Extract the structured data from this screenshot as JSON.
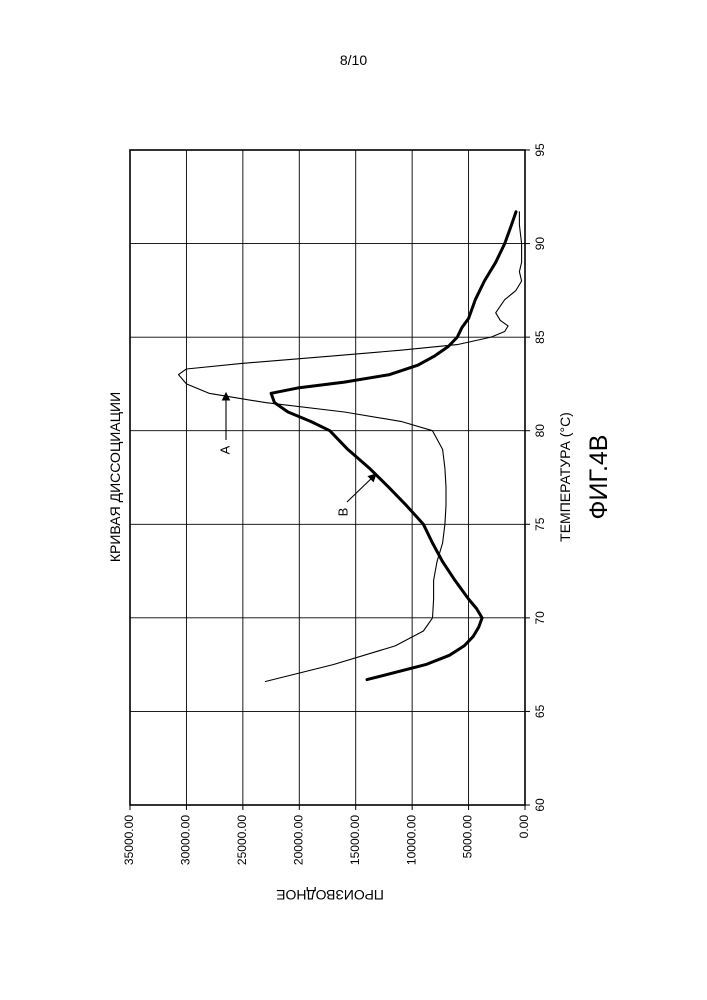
{
  "page": {
    "page_number": "8/10"
  },
  "figure": {
    "figure_label": "ФИГ.4В"
  },
  "chart_data": {
    "type": "line",
    "title": "КРИВАЯ ДИССОЦИАЦИИ",
    "xlabel": "ТЕМПЕРАТУРА (°C)",
    "ylabel": "ПРОИЗВОДНОЕ",
    "xlim": [
      60,
      95
    ],
    "ylim": [
      0,
      35000
    ],
    "x_ticks": [
      "60",
      "65",
      "70",
      "75",
      "80",
      "85",
      "90",
      "95"
    ],
    "y_ticks": [
      "0.00",
      "5000.00",
      "10000.00",
      "15000.00",
      "20000.00",
      "25000.00",
      "30000.00",
      "35000.00"
    ],
    "grid": true,
    "rotated": "90° counter-clockwise",
    "annotations": [
      {
        "label": "A",
        "series": "A"
      },
      {
        "label": "B",
        "series": "B"
      }
    ],
    "series": [
      {
        "name": "A",
        "line": "thin",
        "x": [
          66.6,
          67.5,
          68.5,
          69.3,
          70.0,
          71.0,
          72.0,
          73.0,
          74.0,
          75.0,
          76.0,
          77.0,
          78.0,
          79.0,
          80.0,
          80.5,
          81.0,
          81.5,
          82.0,
          82.5,
          83.0,
          83.3,
          83.6,
          84.0,
          84.3,
          84.6,
          85.0,
          85.3,
          85.6,
          85.9,
          86.3,
          87.0,
          87.5,
          88.0,
          88.5,
          89.0,
          90.0,
          91.0,
          91.7
        ],
        "y": [
          23000,
          17000,
          11500,
          9000,
          8200,
          8100,
          8100,
          7800,
          7300,
          7100,
          7000,
          7000,
          7100,
          7300,
          8200,
          11000,
          16000,
          23000,
          28000,
          30000,
          30700,
          30000,
          25000,
          17000,
          11000,
          6000,
          3000,
          1800,
          1500,
          2200,
          2600,
          1800,
          800,
          300,
          500,
          300,
          300,
          500,
          500
        ]
      },
      {
        "name": "B",
        "line": "thick",
        "x": [
          66.7,
          67.5,
          68.0,
          68.5,
          69.0,
          69.5,
          70.0,
          70.5,
          71.0,
          72.0,
          73.0,
          74.0,
          75.0,
          76.0,
          77.0,
          78.0,
          79.0,
          80.0,
          80.5,
          81.0,
          81.5,
          82.0,
          82.3,
          82.6,
          83.0,
          83.5,
          84.0,
          84.5,
          85.0,
          85.5,
          86.0,
          87.0,
          88.0,
          89.0,
          90.0,
          91.0,
          91.7
        ],
        "y": [
          14000,
          8800,
          6700,
          5400,
          4600,
          4100,
          3800,
          4300,
          5000,
          6200,
          7300,
          8200,
          9000,
          10500,
          12100,
          13800,
          15700,
          17300,
          19000,
          21000,
          22200,
          22500,
          20000,
          16000,
          12000,
          9500,
          8000,
          6800,
          6000,
          5600,
          5000,
          4400,
          3600,
          2600,
          1800,
          1200,
          800
        ]
      }
    ]
  }
}
